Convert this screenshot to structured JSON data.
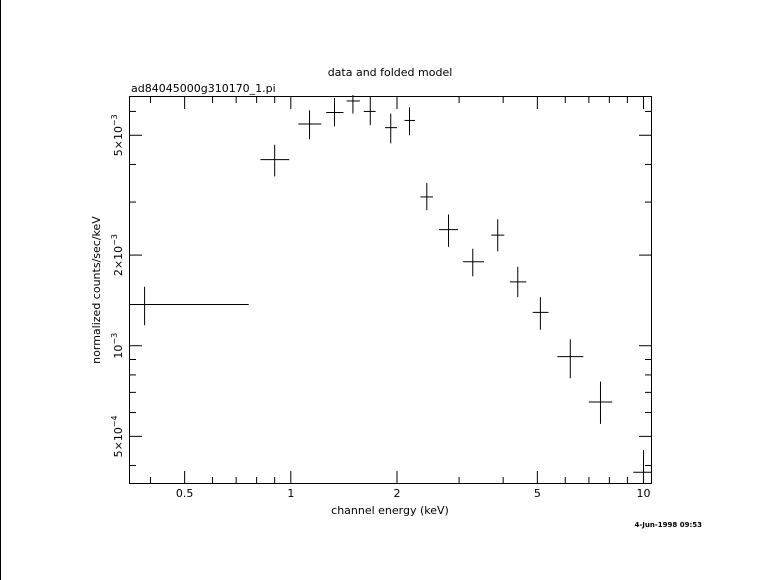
{
  "chart_data": {
    "type": "scatter",
    "title": "data and folded model",
    "subtitle": "ad84045000g310170_1.pi",
    "xlabel": "channel energy (keV)",
    "ylabel": "normalized counts/sec/keV",
    "timestamp": "4-Jun-1998 09:53",
    "x_scale": "log",
    "y_scale": "log",
    "xlim": [
      0.35,
      10.5
    ],
    "ylim": [
      0.00035,
      0.0067
    ],
    "grid": false,
    "x_ticks": [
      {
        "value": 0.5,
        "label": "0.5"
      },
      {
        "value": 1,
        "label": "1"
      },
      {
        "value": 2,
        "label": "2"
      },
      {
        "value": 5,
        "label": "5"
      },
      {
        "value": 10,
        "label": "10"
      }
    ],
    "y_ticks": [
      {
        "value": 0.0005,
        "mant": "5×10",
        "exp": "−4"
      },
      {
        "value": 0.001,
        "mant": "10",
        "exp": "−3"
      },
      {
        "value": 0.002,
        "mant": "2×10",
        "exp": "−3"
      },
      {
        "value": 0.005,
        "mant": "5×10",
        "exp": "−3"
      }
    ],
    "points": [
      {
        "x": 0.385,
        "xlo": 0.35,
        "xhi": 0.76,
        "y": 0.00137,
        "ylo": 0.00117,
        "yhi": 0.00157
      },
      {
        "x": 0.9,
        "xlo": 0.82,
        "xhi": 0.99,
        "y": 0.00415,
        "ylo": 0.00365,
        "yhi": 0.00465
      },
      {
        "x": 1.13,
        "xlo": 1.05,
        "xhi": 1.22,
        "y": 0.00545,
        "ylo": 0.00485,
        "yhi": 0.00605
      },
      {
        "x": 1.33,
        "xlo": 1.26,
        "xhi": 1.41,
        "y": 0.00595,
        "ylo": 0.00535,
        "yhi": 0.00665
      },
      {
        "x": 1.5,
        "xlo": 1.44,
        "xhi": 1.57,
        "y": 0.0065,
        "ylo": 0.0059,
        "yhi": 0.0071
      },
      {
        "x": 1.68,
        "xlo": 1.61,
        "xhi": 1.74,
        "y": 0.006,
        "ylo": 0.0054,
        "yhi": 0.0067
      },
      {
        "x": 1.92,
        "xlo": 1.85,
        "xhi": 2.0,
        "y": 0.0053,
        "ylo": 0.0047,
        "yhi": 0.0059
      },
      {
        "x": 2.17,
        "xlo": 2.1,
        "xhi": 2.25,
        "y": 0.0056,
        "ylo": 0.005,
        "yhi": 0.0062
      },
      {
        "x": 2.43,
        "xlo": 2.33,
        "xhi": 2.53,
        "y": 0.00312,
        "ylo": 0.00282,
        "yhi": 0.00347
      },
      {
        "x": 2.8,
        "xlo": 2.63,
        "xhi": 2.98,
        "y": 0.00243,
        "ylo": 0.00213,
        "yhi": 0.00273
      },
      {
        "x": 3.28,
        "xlo": 3.08,
        "xhi": 3.53,
        "y": 0.0019,
        "ylo": 0.0017,
        "yhi": 0.0021
      },
      {
        "x": 3.86,
        "xlo": 3.7,
        "xhi": 4.03,
        "y": 0.00233,
        "ylo": 0.00206,
        "yhi": 0.00263
      },
      {
        "x": 4.4,
        "xlo": 4.18,
        "xhi": 4.65,
        "y": 0.00163,
        "ylo": 0.00145,
        "yhi": 0.00183
      },
      {
        "x": 5.1,
        "xlo": 4.85,
        "xhi": 5.38,
        "y": 0.00129,
        "ylo": 0.00113,
        "yhi": 0.00145
      },
      {
        "x": 6.2,
        "xlo": 5.7,
        "xhi": 6.75,
        "y": 0.00092,
        "ylo": 0.00078,
        "yhi": 0.00105
      },
      {
        "x": 7.55,
        "xlo": 7.0,
        "xhi": 8.15,
        "y": 0.00065,
        "ylo": 0.00055,
        "yhi": 0.00076
      },
      {
        "x": 10.0,
        "xlo": 9.35,
        "xhi": 10.5,
        "y": 0.00038,
        "ylo": 0.00031,
        "yhi": 0.00045
      }
    ]
  }
}
